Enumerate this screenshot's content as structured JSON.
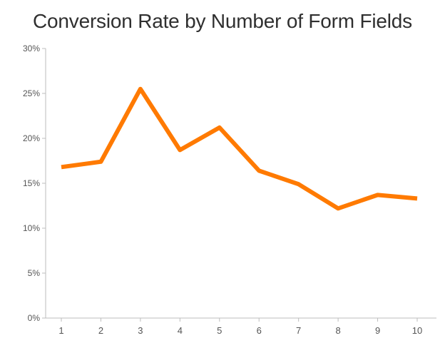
{
  "chart_data": {
    "type": "line",
    "title": "Conversion Rate by Number of Form Fields",
    "xlabel": "",
    "ylabel": "",
    "x": [
      "1",
      "2",
      "3",
      "4",
      "5",
      "6",
      "7",
      "8",
      "9",
      "10"
    ],
    "series": [
      {
        "values": [
          16.8,
          17.4,
          25.5,
          18.7,
          21.2,
          16.4,
          14.9,
          12.2,
          13.7,
          13.3
        ],
        "color": "#ff7a00"
      }
    ],
    "ylim": [
      0,
      30
    ],
    "yticks": [
      0,
      5,
      10,
      15,
      20,
      25,
      30
    ],
    "ytick_labels": [
      "0%",
      "5%",
      "10%",
      "15%",
      "20%",
      "25%",
      "30%"
    ],
    "grid": false,
    "legend": "none"
  },
  "colors": {
    "axis": "#bdbdbd",
    "tick_text": "#555555",
    "title_text": "#2f2f2f"
  }
}
